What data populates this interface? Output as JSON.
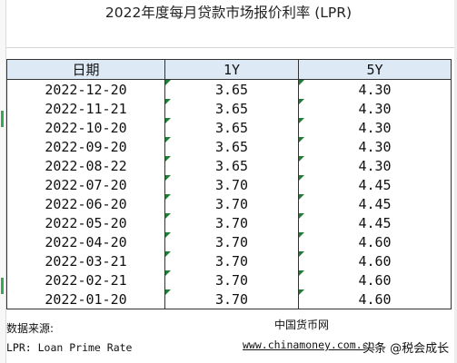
{
  "title": "2022年度每月贷款市场报价利率 (LPR)",
  "table": {
    "headers": [
      "日期",
      "1Y",
      "5Y"
    ],
    "rows": [
      [
        "2022-12-20",
        "3.65",
        "4.30"
      ],
      [
        "2022-11-21",
        "3.65",
        "4.30"
      ],
      [
        "2022-10-20",
        "3.65",
        "4.30"
      ],
      [
        "2022-09-20",
        "3.65",
        "4.30"
      ],
      [
        "2022-08-22",
        "3.65",
        "4.30"
      ],
      [
        "2022-07-20",
        "3.70",
        "4.45"
      ],
      [
        "2022-06-20",
        "3.70",
        "4.45"
      ],
      [
        "2022-05-20",
        "3.70",
        "4.45"
      ],
      [
        "2022-04-20",
        "3.70",
        "4.60"
      ],
      [
        "2022-03-21",
        "3.70",
        "4.60"
      ],
      [
        "2022-02-21",
        "3.70",
        "4.60"
      ],
      [
        "2022-01-20",
        "3.70",
        "4.60"
      ]
    ]
  },
  "footer": {
    "source_label": "数据来源:",
    "lpr_note": "LPR: Loan Prime Rate",
    "source_name": "中国货币网",
    "source_url": "www.chinamoney.com.cn"
  },
  "watermark": "头条 @税会成长",
  "colors": {
    "header_bg": "#dde9f5",
    "cell_marker": "#1e7d32",
    "gutter_marker": "#3aa657"
  }
}
